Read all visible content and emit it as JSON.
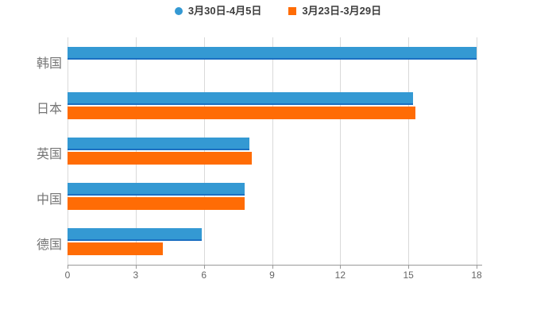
{
  "chart_data": {
    "type": "bar",
    "orientation": "horizontal",
    "title": "",
    "xlabel": "",
    "ylabel": "",
    "categories": [
      "韩国",
      "日本",
      "英国",
      "中国",
      "德国"
    ],
    "series": [
      {
        "name": "3月30日-4月5日",
        "color": "#3499d3",
        "edge_color": "#1b6fc2",
        "marker": "circle",
        "values": [
          18,
          15.2,
          8.0,
          7.8,
          5.9
        ]
      },
      {
        "name": "3月23日-3月29日",
        "color": "#ff6c05",
        "edge_color": "#ff6c05",
        "marker": "square",
        "values": [
          0,
          15.3,
          8.1,
          7.8,
          4.2
        ]
      }
    ],
    "xlim": [
      0,
      18
    ],
    "xticks": [
      0,
      3,
      6,
      9,
      12,
      15,
      18
    ],
    "grid": true,
    "legend_position": "top",
    "colors": {
      "background": "#ffffff",
      "grid": "#d9d9d9",
      "axis": "#999999",
      "tick_label": "#666666",
      "category_label": "#757575",
      "legend_text": "#3d3d3d"
    }
  }
}
